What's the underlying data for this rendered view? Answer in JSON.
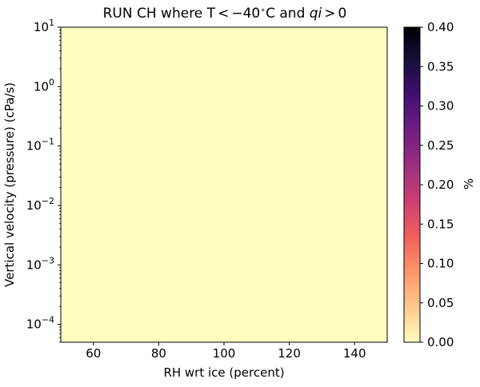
{
  "chart_data": {
    "type": "heatmap",
    "title_parts": {
      "prefix": "RUN CH where T",
      "lt": "<",
      "minus": "−",
      "num": "40",
      "deg": "∘",
      "unit": "C",
      "and_text": " and ",
      "qi": "qi",
      "gt": ">",
      "zero": "0"
    },
    "xlabel": "RH wrt ice (percent)",
    "ylabel": "Vertical velocity (pressure) (cPa/s)",
    "xlim": [
      50,
      150
    ],
    "x_ticks": [
      60,
      80,
      100,
      120,
      140
    ],
    "ylim": [
      5e-05,
      10
    ],
    "y_scale": "log",
    "y_ticks": [
      {
        "value": 10,
        "base": "10",
        "exp": "1"
      },
      {
        "value": 1,
        "base": "10",
        "exp": "0"
      },
      {
        "value": 0.1,
        "base": "10",
        "exp": "−1"
      },
      {
        "value": 0.01,
        "base": "10",
        "exp": "−2"
      },
      {
        "value": 0.001,
        "base": "10",
        "exp": "−3"
      },
      {
        "value": 0.0001,
        "base": "10",
        "exp": "−4"
      }
    ],
    "z_fill_value": 0.0,
    "z_fill_color": "#fcfdbf",
    "colorbar": {
      "label": "%",
      "cmap": "magma_r",
      "vmin": 0.0,
      "vmax": 0.4,
      "ticks": [
        "0.00",
        "0.05",
        "0.10",
        "0.15",
        "0.20",
        "0.25",
        "0.30",
        "0.35",
        "0.40"
      ],
      "tick_values": [
        0.0,
        0.05,
        0.1,
        0.15,
        0.2,
        0.25,
        0.3,
        0.35,
        0.4
      ],
      "colors": [
        "#fcfdbf",
        "#feca8d",
        "#fd9668",
        "#f1605d",
        "#cd4071",
        "#9e2f7f",
        "#721f81",
        "#440f76",
        "#180f3d",
        "#000004"
      ]
    },
    "grid": false,
    "legend": "none"
  }
}
